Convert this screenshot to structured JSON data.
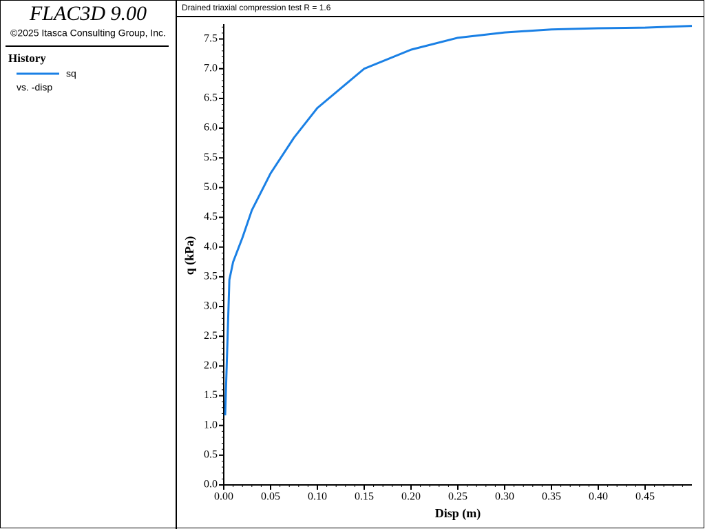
{
  "app": {
    "product": "FLAC3D 9.00",
    "copyright": "©2025 Itasca Consulting Group, Inc.",
    "legend_heading": "History",
    "legend_against": "vs. -disp"
  },
  "chart_data": {
    "type": "line",
    "title": "Drained triaxial compression test R = 1.6",
    "x_label": "Disp (m)",
    "y_label": "q (kPa)",
    "x": [
      0.0015,
      0.006,
      0.01,
      0.02,
      0.03,
      0.05,
      0.075,
      0.1,
      0.15,
      0.2,
      0.25,
      0.3,
      0.35,
      0.4,
      0.45,
      0.5
    ],
    "series": [
      {
        "name": "sq",
        "color": "#1a80e5",
        "values": [
          1.17,
          3.45,
          3.75,
          4.16,
          4.62,
          5.24,
          5.84,
          6.34,
          7.0,
          7.32,
          7.52,
          7.61,
          7.66,
          7.68,
          7.69,
          7.72
        ]
      }
    ],
    "xlim": [
      0,
      0.5
    ],
    "ylim": [
      0,
      7.75
    ],
    "xticks": [
      {
        "value": 0,
        "label": "0.00"
      },
      0.05,
      {
        "value": 0.1,
        "label": "0.10"
      },
      0.15,
      {
        "value": 0.2,
        "label": "0.20"
      },
      0.25,
      {
        "value": 0.3,
        "label": "0.30"
      },
      0.35,
      {
        "value": 0.4,
        "label": "0.40"
      },
      0.45
    ],
    "yticks": [
      {
        "value": 0,
        "label": "0.0"
      },
      0.5,
      {
        "value": 1,
        "label": "1.0"
      },
      1.5,
      {
        "value": 2,
        "label": "2.0"
      },
      2.5,
      {
        "value": 3,
        "label": "3.0"
      },
      3.5,
      {
        "value": 4,
        "label": "4.0"
      },
      4.5,
      {
        "value": 5,
        "label": "5.0"
      },
      5.5,
      {
        "value": 6,
        "label": "6.0"
      },
      6.5,
      {
        "value": 7,
        "label": "7.0"
      },
      7.5
    ]
  }
}
